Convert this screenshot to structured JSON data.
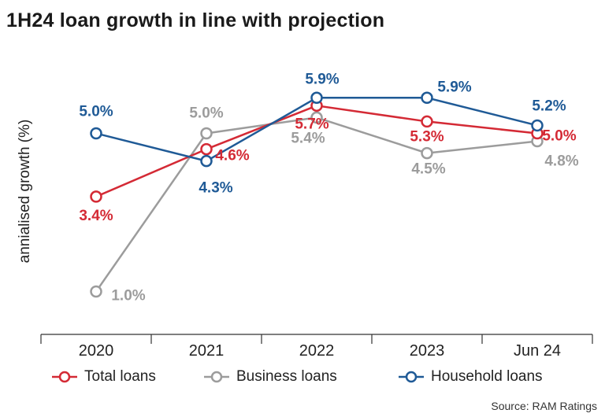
{
  "title": "1H24 loan growth in line with projection",
  "source": "Source: RAM Ratings",
  "chart_data": {
    "type": "line",
    "categories": [
      "2020",
      "2021",
      "2022",
      "2023",
      "Jun 24"
    ],
    "ylabel": "annialised growth (%)",
    "xlabel": "",
    "grid": false,
    "legend_position": "bottom",
    "series": [
      {
        "name": "Total loans",
        "color": "#d42a35",
        "values": [
          3.4,
          4.6,
          5.7,
          5.3,
          5.0
        ],
        "labels": [
          "3.4%",
          "4.6%",
          "5.7%",
          "5.3%",
          "5.0%"
        ]
      },
      {
        "name": "Business loans",
        "color": "#9c9c9c",
        "values": [
          1.0,
          5.0,
          5.4,
          4.5,
          4.8
        ],
        "labels": [
          "1.0%",
          "5.0%",
          "5.4%",
          "4.5%",
          "4.8%"
        ]
      },
      {
        "name": "Household loans",
        "color": "#1f5a96",
        "values": [
          5.0,
          4.3,
          5.9,
          5.9,
          5.2
        ],
        "labels": [
          "5.0%",
          "4.3%",
          "5.9%",
          "5.9%",
          "5.2%"
        ]
      }
    ]
  }
}
